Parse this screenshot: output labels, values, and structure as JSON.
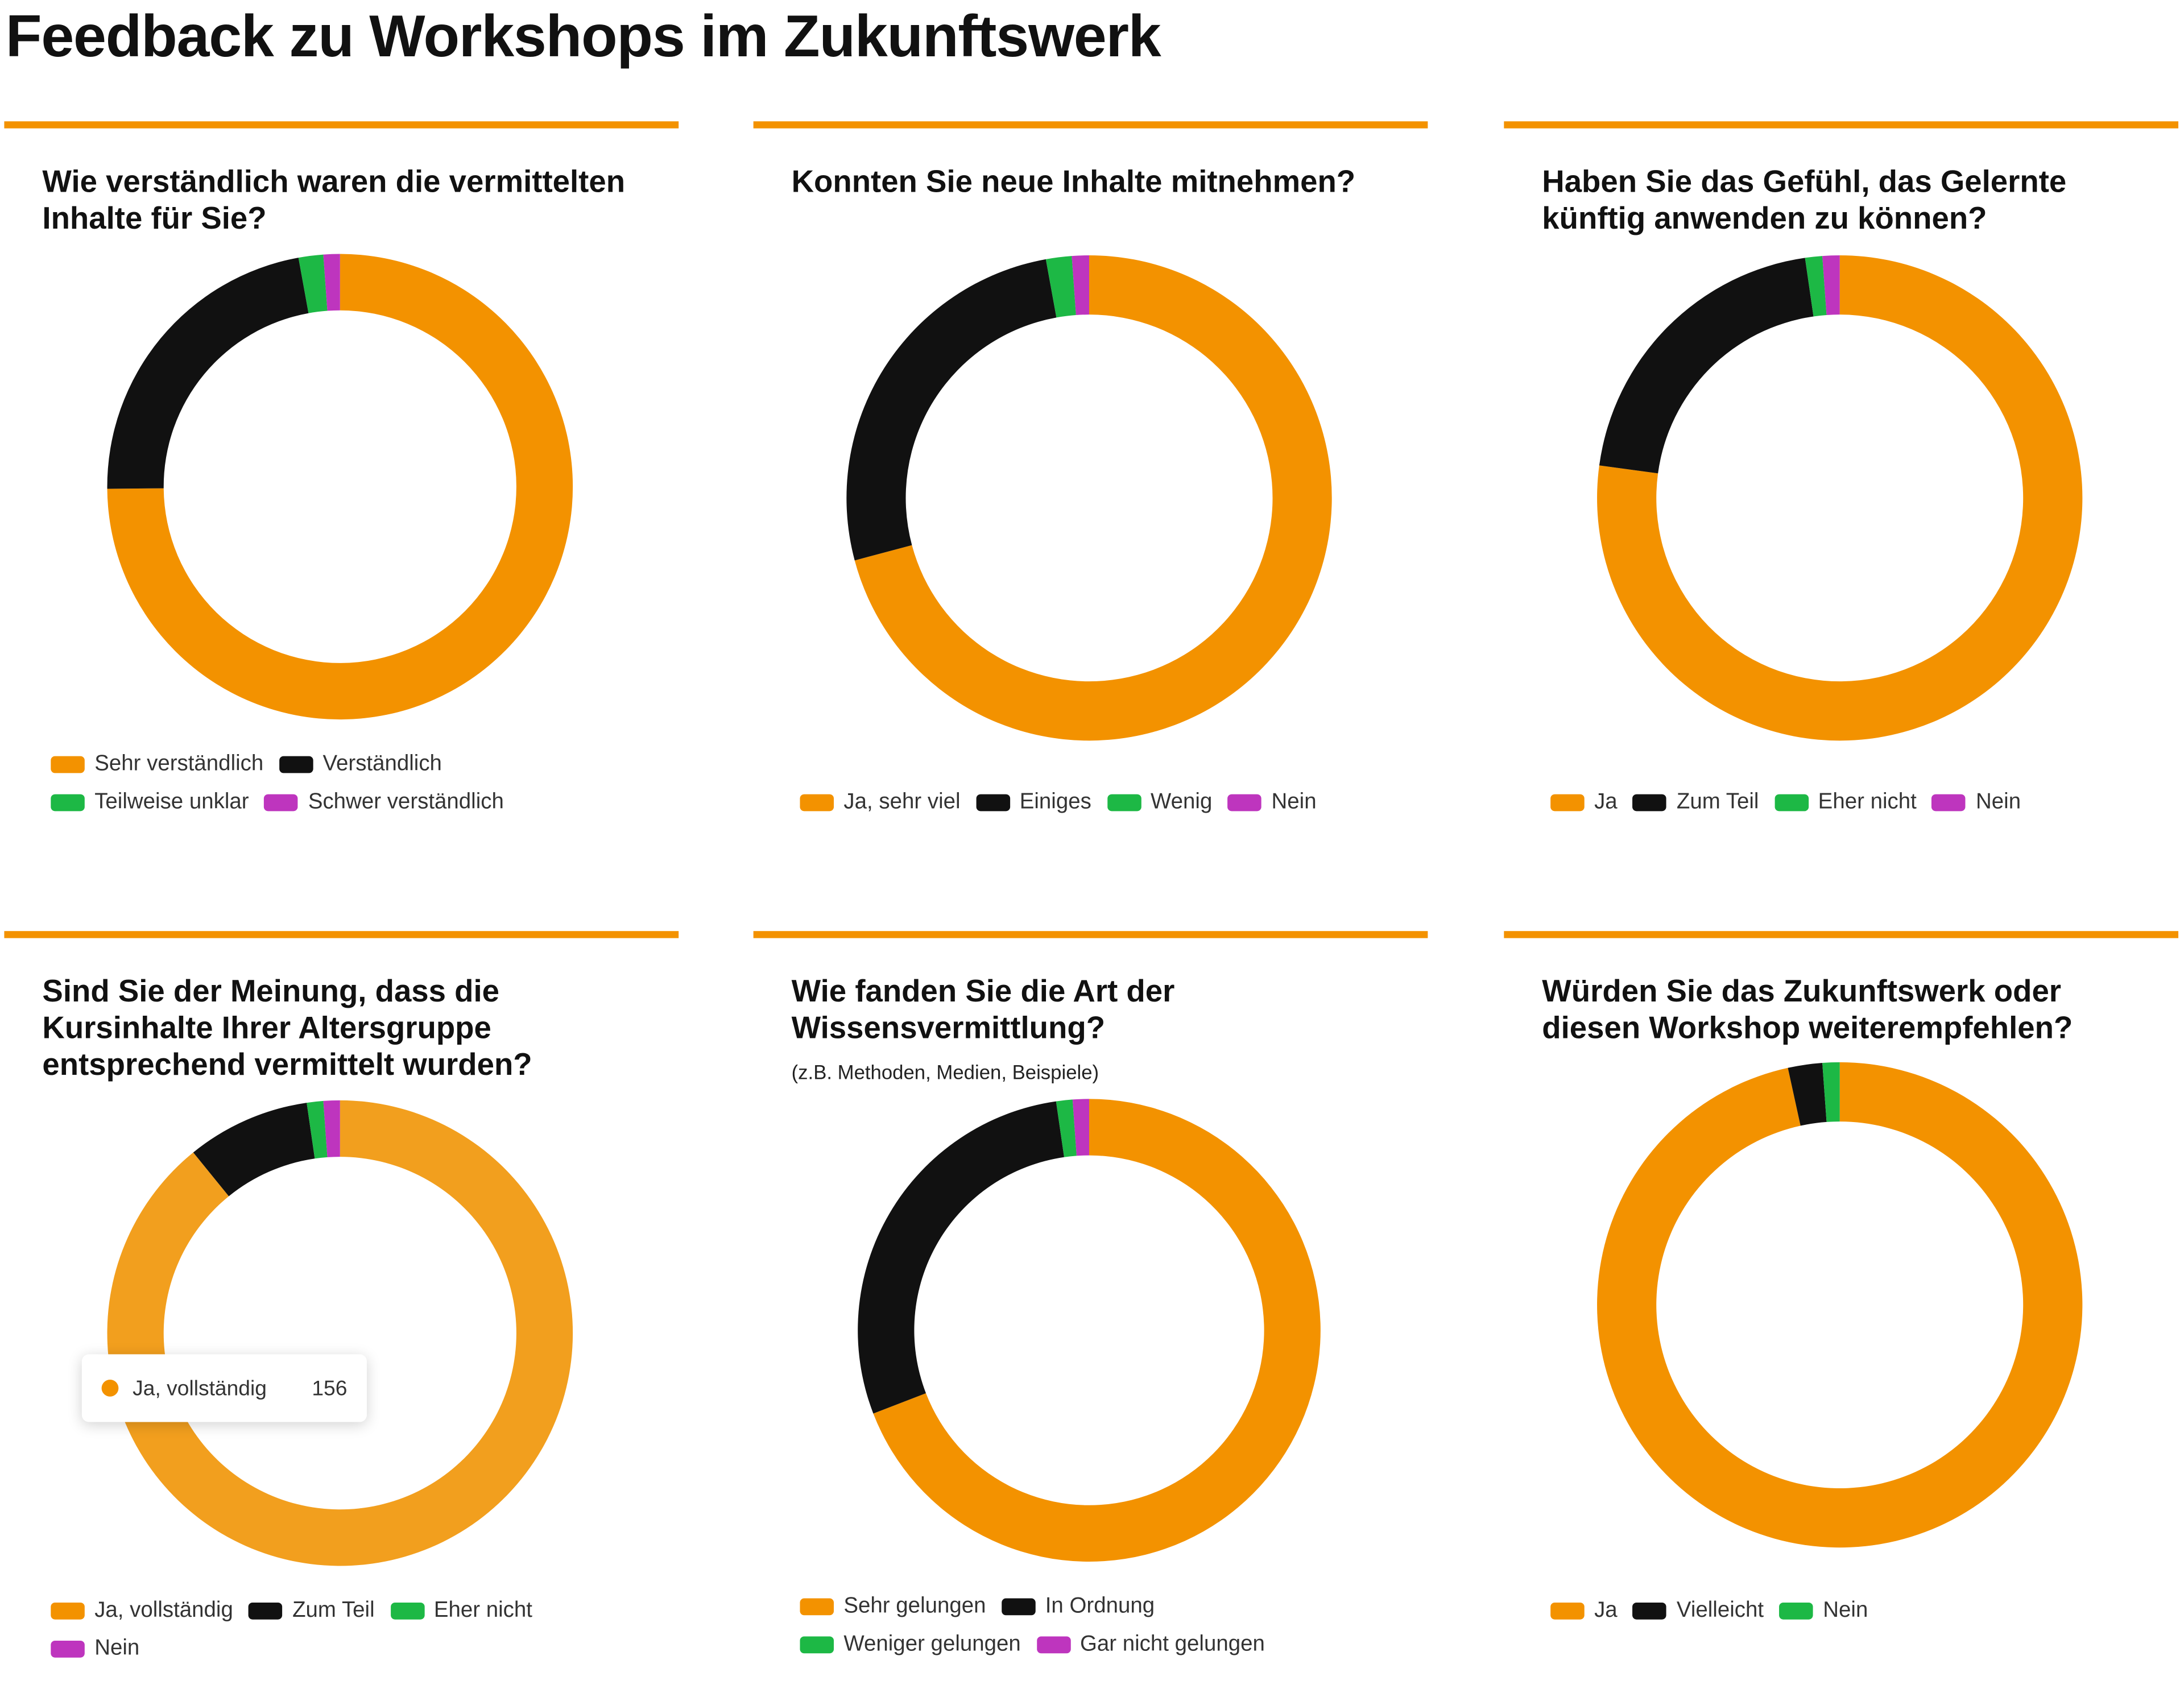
{
  "title": "Feedback zu Workshops im Zukunftswerk",
  "colors": {
    "orange": "#F39200",
    "orange_hover": "#F29F1E",
    "black": "#111111",
    "green": "#1DB845",
    "magenta": "#BE35BE",
    "rule": "#F39200"
  },
  "chart_data": [
    {
      "type": "pie",
      "variant": "donut",
      "title": "Wie verständlich waren die vermittelten Inhalte für Sie?",
      "categories": [
        "Sehr verständlich",
        "Verständlich",
        "Teilweise unklar",
        "Schwer verständlich"
      ],
      "values": [
        131,
        39,
        3,
        2
      ],
      "colors": [
        "#F39200",
        "#111111",
        "#1DB845",
        "#BE35BE"
      ],
      "legend": "bottom"
    },
    {
      "type": "pie",
      "variant": "donut",
      "title": "Konnten Sie neue Inhalte mitnehmen?",
      "categories": [
        "Ja, sehr viel",
        "Einiges",
        "Wenig",
        "Nein"
      ],
      "values": [
        124,
        46,
        3,
        2
      ],
      "colors": [
        "#F39200",
        "#111111",
        "#1DB845",
        "#BE35BE"
      ],
      "legend": "bottom"
    },
    {
      "type": "pie",
      "variant": "donut",
      "title": "Haben Sie das Gefühl, das Gelernte künftig anwenden zu können?",
      "categories": [
        "Ja",
        "Zum Teil",
        "Eher nicht",
        "Nein"
      ],
      "values": [
        135,
        36,
        2,
        2
      ],
      "colors": [
        "#F39200",
        "#111111",
        "#1DB845",
        "#BE35BE"
      ],
      "legend": "bottom"
    },
    {
      "type": "pie",
      "variant": "donut",
      "title": "Sind Sie der Meinung, dass die Kursinhalte Ihrer Altersgruppe entsprechend vermittelt wurden?",
      "categories": [
        "Ja, vollständig",
        "Zum Teil",
        "Eher nicht",
        "Nein"
      ],
      "values": [
        156,
        15,
        2,
        2
      ],
      "colors": [
        "#F29F1E",
        "#111111",
        "#1DB845",
        "#BE35BE"
      ],
      "legend": "bottom",
      "tooltip": {
        "label": "Ja, vollständig",
        "value": "156"
      }
    },
    {
      "type": "pie",
      "variant": "donut",
      "title": "Wie fanden Sie die Art der Wissensvermittlung?",
      "subtitle": "(z.B. Methoden, Medien, Beispiele)",
      "categories": [
        "Sehr gelungen",
        "In Ordnung",
        "Weniger gelungen",
        "Gar nicht gelungen"
      ],
      "values": [
        121,
        50,
        2,
        2
      ],
      "colors": [
        "#F39200",
        "#111111",
        "#1DB845",
        "#BE35BE"
      ],
      "legend": "bottom"
    },
    {
      "type": "pie",
      "variant": "donut",
      "title": "Würden Sie das Zukunftswerk oder diesen Workshop weiterempfehlen?",
      "categories": [
        "Ja",
        "Vielleicht",
        "Nein"
      ],
      "values": [
        169,
        4,
        2
      ],
      "colors": [
        "#F39200",
        "#111111",
        "#1DB845"
      ],
      "legend": "bottom"
    }
  ]
}
